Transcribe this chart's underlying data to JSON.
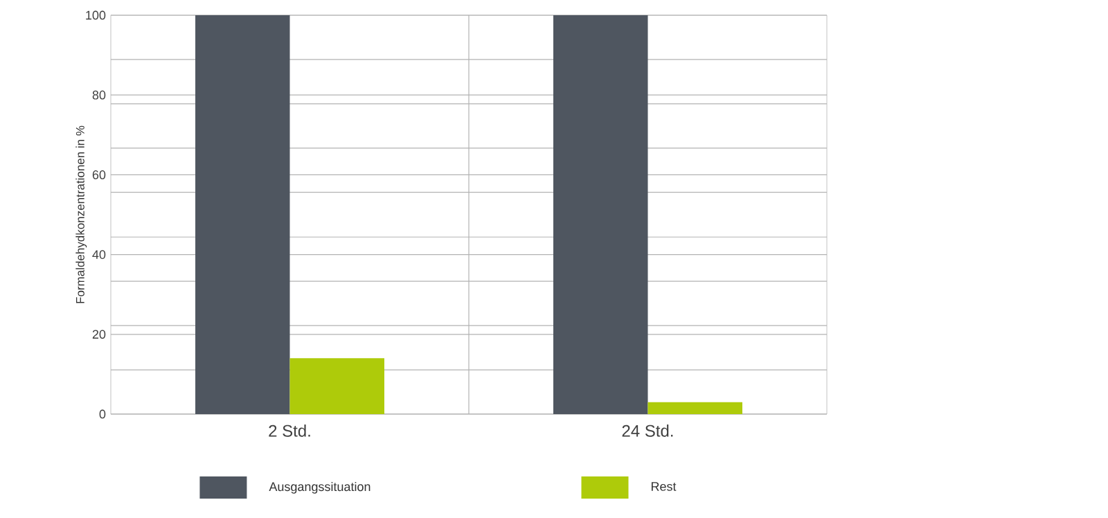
{
  "chart_data": {
    "type": "bar",
    "ylabel": "Formaldehydkonzentrationen in %",
    "categories": [
      "2 Std.",
      "24 Std."
    ],
    "series": [
      {
        "name": "Ausgangssituation",
        "color": "#4f5660",
        "values": [
          100,
          100
        ]
      },
      {
        "name": "Rest",
        "color": "#aecb0a",
        "values": [
          14,
          3
        ]
      }
    ],
    "ylim": [
      0,
      100
    ],
    "yticks": [
      0,
      {
        "value": 11.1,
        "label": null
      },
      20,
      {
        "value": 22.2,
        "label": null
      },
      {
        "value": 33.3,
        "label": null
      },
      40,
      {
        "value": 44.4,
        "label": null
      },
      {
        "value": 55.6,
        "label": null
      },
      60,
      {
        "value": 66.7,
        "label": null
      },
      {
        "value": 77.8,
        "label": null
      },
      80,
      {
        "value": 88.9,
        "label": null
      },
      100
    ],
    "grid": "y",
    "legend": "bottom"
  }
}
